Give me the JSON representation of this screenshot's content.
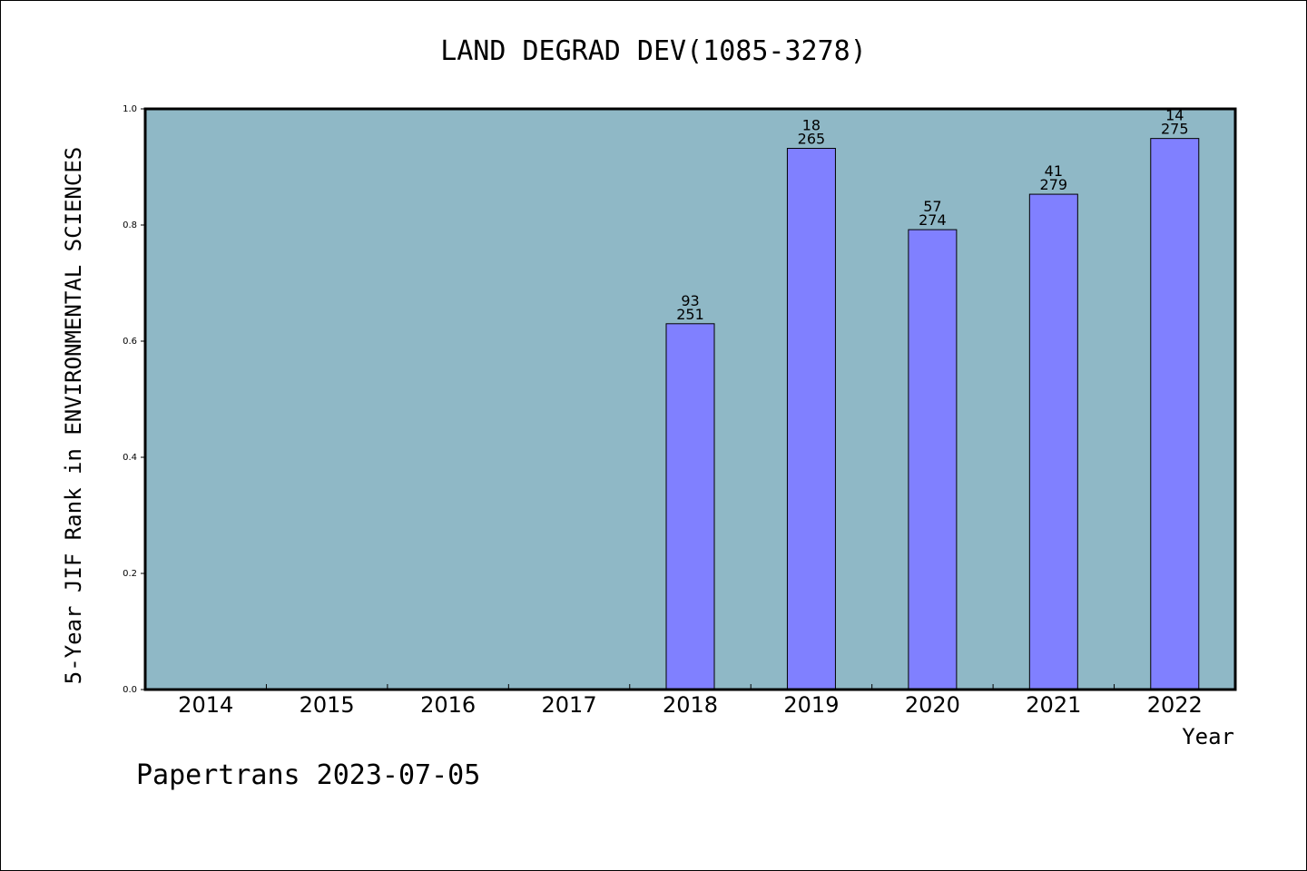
{
  "chart_data": {
    "type": "bar",
    "title": "LAND DEGRAD DEV(1085-3278)",
    "xlabel": "Year",
    "ylabel": "5-Year JIF Rank in ENVIRONMENTAL SCIENCES",
    "footer": "Papertrans 2023-07-05",
    "categories": [
      "2014",
      "2015",
      "2016",
      "2017",
      "2018",
      "2019",
      "2020",
      "2021",
      "2022"
    ],
    "values": [
      null,
      null,
      null,
      null,
      0.63,
      0.932,
      0.792,
      0.853,
      0.949
    ],
    "label_top": [
      "",
      "",
      "",
      "",
      "93",
      "18",
      "57",
      "41",
      "14"
    ],
    "label_bottom": [
      "",
      "",
      "",
      "",
      "251",
      "265",
      "274",
      "279",
      "275"
    ],
    "ylim": [
      0,
      1.0
    ],
    "yticks": [
      "0.0",
      "0.2",
      "0.4",
      "0.6",
      "0.8",
      "1.0"
    ],
    "grid": false,
    "colors": {
      "plot_background": "#8fb8c6",
      "bar_fill": "#8080ff",
      "bar_stroke": "#000000",
      "axis": "#000000"
    }
  }
}
